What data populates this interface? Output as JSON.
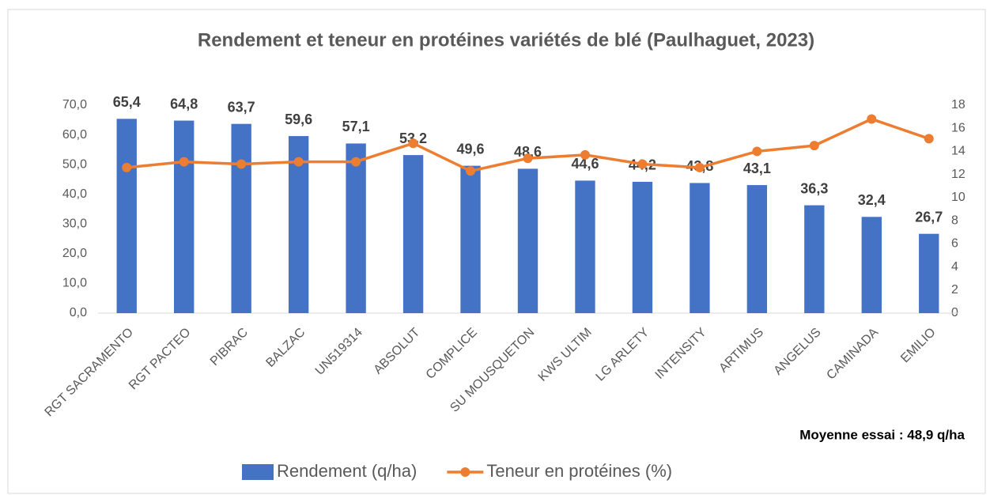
{
  "chart_data": {
    "type": "bar",
    "title": "Rendement et teneur en protéines variétés de blé (Paulhaguet, 2023)",
    "annotation": "Moyenne essai : 48,9 q/ha",
    "categories": [
      "RGT SACRAMENTO",
      "RGT PACTEO",
      "PIBRAC",
      "BALZAC",
      "UN519314",
      "ABSOLUT",
      "COMPLICE",
      "SU MOUSQUETON",
      "KWS ULTIM",
      "LG ARLETY",
      "INTENSITY",
      "ARTIMUS",
      "ANGELUS",
      "CAMINADA",
      "EMILIO"
    ],
    "series": [
      {
        "name": "Rendement (q/ha)",
        "type": "bar",
        "color": "#4472c4",
        "values": [
          65.4,
          64.8,
          63.7,
          59.6,
          57.1,
          53.2,
          49.6,
          48.6,
          44.6,
          44.2,
          43.8,
          43.1,
          36.3,
          32.4,
          26.7
        ],
        "value_labels": [
          "65,4",
          "64,8",
          "63,7",
          "59,6",
          "57,1",
          "53,2",
          "49,6",
          "48,6",
          "44,6",
          "44,2",
          "43,8",
          "43,1",
          "36,3",
          "32,4",
          "26,7"
        ]
      },
      {
        "name": "Teneur en protéines (%)",
        "type": "line",
        "axis": "y2",
        "color": "#ed7d31",
        "values": [
          12.6,
          13.1,
          12.9,
          13.1,
          13.1,
          14.7,
          12.3,
          13.4,
          13.7,
          12.9,
          12.6,
          14.0,
          14.5,
          16.8,
          15.1
        ]
      }
    ],
    "ylim": [
      0,
      70
    ],
    "yticks": [
      {
        "value": 0,
        "label": "0,0"
      },
      {
        "value": 10,
        "label": "10,0"
      },
      {
        "value": 20,
        "label": "20,0"
      },
      {
        "value": 30,
        "label": "30,0"
      },
      {
        "value": 40,
        "label": "40,0"
      },
      {
        "value": 50,
        "label": "50,0"
      },
      {
        "value": 60,
        "label": "60,0"
      },
      {
        "value": 70,
        "label": "70,0"
      }
    ],
    "y2lim": [
      0,
      18
    ],
    "y2ticks": [
      0,
      2,
      4,
      6,
      8,
      10,
      12,
      14,
      16,
      18
    ],
    "grid": false,
    "legend": "bottom"
  }
}
